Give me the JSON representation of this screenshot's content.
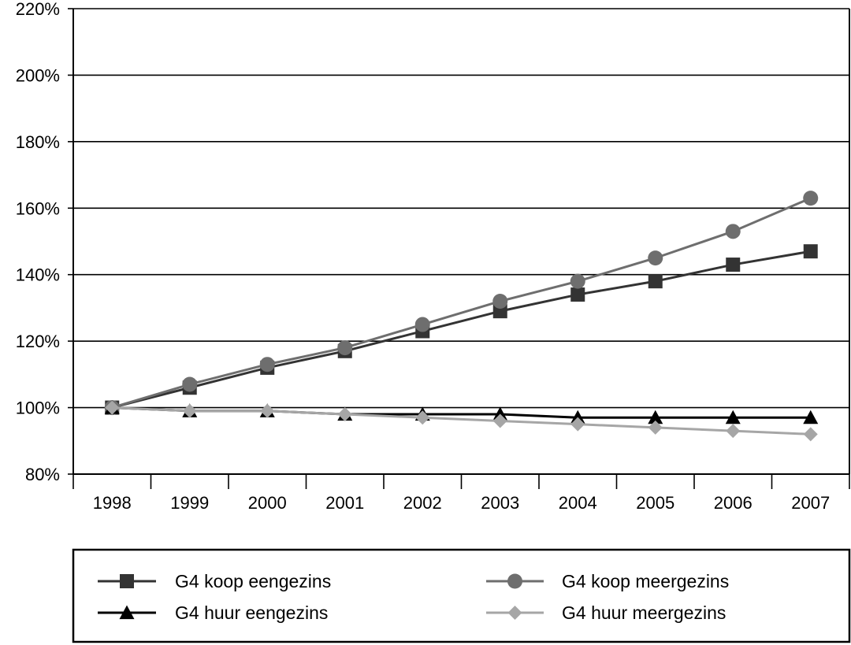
{
  "chart_data": {
    "type": "line",
    "title": "",
    "xlabel": "",
    "ylabel": "",
    "categories": [
      "1998",
      "1999",
      "2000",
      "2001",
      "2002",
      "2003",
      "2004",
      "2005",
      "2006",
      "2007"
    ],
    "ylim": [
      80,
      220
    ],
    "yticks": [
      80,
      100,
      120,
      140,
      160,
      180,
      200,
      220
    ],
    "ytick_suffix": "%",
    "grid": "horizontal",
    "legend_position": "bottom",
    "series": [
      {
        "name": "G4 koop eengezins",
        "marker": "square",
        "color": "#333333",
        "values": [
          100,
          106,
          112,
          117,
          123,
          129,
          134,
          138,
          143,
          147
        ]
      },
      {
        "name": "G4 koop meergezins",
        "marker": "circle",
        "color": "#6e6e6e",
        "values": [
          100,
          107,
          113,
          118,
          125,
          132,
          138,
          145,
          153,
          163
        ]
      },
      {
        "name": "G4 huur eengezins",
        "marker": "triangle",
        "color": "#000000",
        "values": [
          100,
          99,
          99,
          98,
          98,
          98,
          97,
          97,
          97,
          97
        ]
      },
      {
        "name": "G4 huur meergezins",
        "marker": "diamond",
        "color": "#a6a6a6",
        "values": [
          100,
          99,
          99,
          98,
          97,
          96,
          95,
          94,
          93,
          92
        ]
      }
    ]
  }
}
